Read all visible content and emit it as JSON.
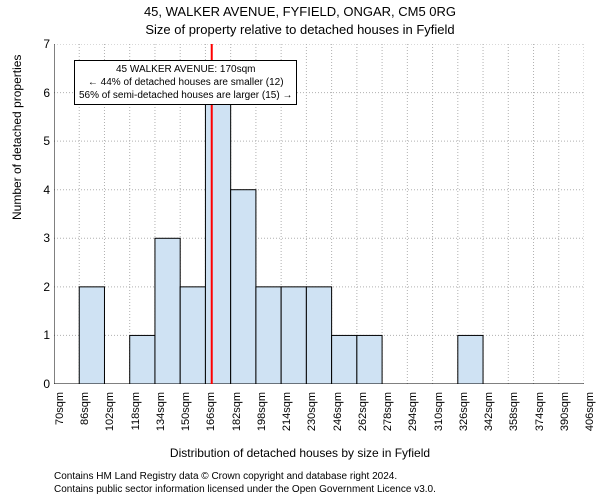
{
  "chart": {
    "type": "histogram",
    "title_main": "45, WALKER AVENUE, FYFIELD, ONGAR, CM5 0RG",
    "title_sub": "Size of property relative to detached houses in Fyfield",
    "yaxis_label": "Number of detached properties",
    "xaxis_label": "Distribution of detached houses by size in Fyfield",
    "ylim": [
      0,
      7
    ],
    "ytick_step": 1,
    "x_start": 70,
    "x_step": 16,
    "xtick_suffix": "sqm",
    "n_bins": 21,
    "bin_width": 16,
    "bar_values": [
      0,
      2,
      0,
      1,
      3,
      2,
      6,
      4,
      2,
      2,
      2,
      1,
      1,
      0,
      0,
      0,
      1,
      0,
      0,
      0,
      0
    ],
    "highlight_x": 170,
    "bar_fill": "#cfe2f3",
    "bar_stroke": "#000000",
    "grid_color": "#b0b0b0",
    "highlight_color": "#ff0000",
    "background_color": "#ffffff",
    "title_fontsize": 13,
    "label_fontsize": 12,
    "tick_fontsize": 11,
    "infobox": {
      "line1": "45 WALKER AVENUE: 170sqm",
      "line2": "← 44% of detached houses are smaller (12)",
      "line3": "56% of semi-detached houses are larger (15) →"
    },
    "footer_line1": "Contains HM Land Registry data © Crown copyright and database right 2024.",
    "footer_line2": "Contains public sector information licensed under the Open Government Licence v3.0."
  }
}
